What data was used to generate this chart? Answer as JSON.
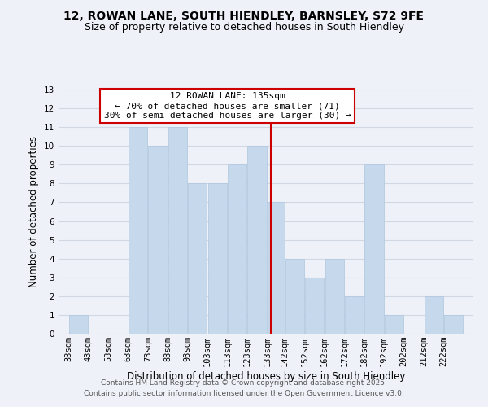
{
  "title": "12, ROWAN LANE, SOUTH HIENDLEY, BARNSLEY, S72 9FE",
  "subtitle": "Size of property relative to detached houses in South Hiendley",
  "xlabel": "Distribution of detached houses by size in South Hiendley",
  "ylabel": "Number of detached properties",
  "bar_color": "#c5d8ec",
  "bar_edge_color": "#aec6de",
  "background_color": "#eef2f8",
  "grid_color": "#d0d8e4",
  "bins": [
    33,
    43,
    53,
    63,
    73,
    83,
    93,
    103,
    113,
    123,
    133,
    142,
    152,
    162,
    172,
    182,
    192,
    202,
    212,
    222,
    232
  ],
  "counts": [
    1,
    0,
    0,
    11,
    10,
    11,
    8,
    8,
    9,
    10,
    7,
    4,
    3,
    4,
    2,
    9,
    1,
    0,
    2,
    1
  ],
  "ylim": [
    0,
    13
  ],
  "yticks": [
    0,
    1,
    2,
    3,
    4,
    5,
    6,
    7,
    8,
    9,
    10,
    11,
    12,
    13
  ],
  "property_line_x": 135,
  "property_line_color": "#cc0000",
  "annotation_title": "12 ROWAN LANE: 135sqm",
  "annotation_line1": "← 70% of detached houses are smaller (71)",
  "annotation_line2": "30% of semi-detached houses are larger (30) →",
  "annotation_box_color": "#ffffff",
  "annotation_box_edge_color": "#cc0000",
  "footer_line1": "Contains HM Land Registry data © Crown copyright and database right 2025.",
  "footer_line2": "Contains public sector information licensed under the Open Government Licence v3.0.",
  "title_fontsize": 10,
  "subtitle_fontsize": 9,
  "xlabel_fontsize": 8.5,
  "ylabel_fontsize": 8.5,
  "tick_fontsize": 7.5,
  "annotation_fontsize": 8,
  "footer_fontsize": 6.5
}
